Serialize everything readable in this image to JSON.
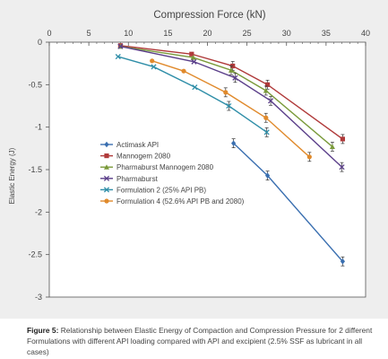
{
  "chart_data": {
    "type": "line",
    "title": "Compression Force (kN)",
    "xlabel": "",
    "ylabel": "Elastic Energy (J)",
    "xlim": [
      0,
      40
    ],
    "ylim": [
      -3,
      0
    ],
    "x_axis_position": "top",
    "x_ticks": [
      0,
      5,
      10,
      15,
      20,
      25,
      30,
      35,
      40
    ],
    "y_ticks": [
      0,
      -0.5,
      -1,
      -1.5,
      -2,
      -2.5,
      -3
    ],
    "x_tick_labels": [
      "0",
      "5",
      "10",
      "15",
      "20",
      "25",
      "30",
      "35",
      "40"
    ],
    "y_tick_labels": [
      "0",
      "-0.5",
      "-1",
      "-1.5",
      "-2",
      "-2.5",
      "-3"
    ],
    "grid": false,
    "legend_position": "center-left",
    "series": [
      {
        "name": "Actimask API",
        "color": "#3a6fb0",
        "marker": "diamond",
        "x": [
          23.3,
          27.6,
          37.1
        ],
        "y": [
          -1.19,
          -1.57,
          -2.58
        ]
      },
      {
        "name": "Mannogem 2080",
        "color": "#b03a3a",
        "marker": "square",
        "x": [
          9.0,
          18.0,
          23.2,
          27.6,
          37.1
        ],
        "y": [
          -0.04,
          -0.14,
          -0.28,
          -0.5,
          -1.14
        ]
      },
      {
        "name": "Pharmaburst Mannogem 2080",
        "color": "#7a9a3a",
        "marker": "triangle",
        "x": [
          9.0,
          18.2,
          23.0,
          27.4,
          35.8
        ],
        "y": [
          -0.05,
          -0.18,
          -0.33,
          -0.57,
          -1.23
        ]
      },
      {
        "name": "Pharmaburst",
        "color": "#5b3f8a",
        "marker": "x",
        "x": [
          9.0,
          18.3,
          23.5,
          28.0,
          37.0
        ],
        "y": [
          -0.05,
          -0.23,
          -0.42,
          -0.69,
          -1.47
        ]
      },
      {
        "name": "Formulation 2 (25% API PB)",
        "color": "#2f8ea8",
        "marker": "x",
        "x": [
          8.7,
          13.2,
          18.4,
          22.7,
          27.5
        ],
        "y": [
          -0.17,
          -0.29,
          -0.53,
          -0.75,
          -1.06
        ]
      },
      {
        "name": "Formulation 4 (52.6% API PB and 2080)",
        "color": "#e08a2c",
        "marker": "circle",
        "x": [
          13.0,
          17.0,
          22.3,
          27.4,
          32.9
        ],
        "y": [
          -0.22,
          -0.34,
          -0.59,
          -0.89,
          -1.35
        ]
      }
    ]
  },
  "caption": {
    "label": "Figure 5:",
    "text": "Relationship between Elastic Energy of Compaction and Compression Pressure for 2 different Formulations with different API loading compared with API and excipient (2.5% SSF as lubricant in all cases)"
  }
}
